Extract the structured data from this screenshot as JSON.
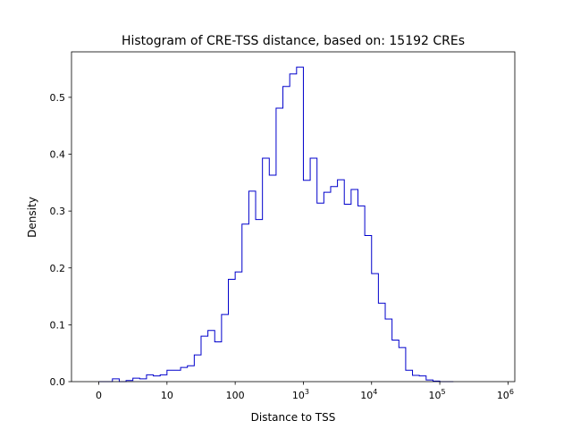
{
  "chart_data": {
    "type": "histogram-step",
    "title": "Histogram of CRE-TSS distance, based on: 15192 CREs",
    "xlabel": "Distance to TSS",
    "ylabel": "Density",
    "xscale": "symlog",
    "xlim_decades": [
      -0.4,
      6.1
    ],
    "ylim": [
      0,
      0.58
    ],
    "grid": false,
    "line_color": "#0000cc",
    "x_ticks": [
      {
        "label": "0",
        "decade": 0
      },
      {
        "label": "10",
        "decade": 1
      },
      {
        "label": "100",
        "decade": 2
      },
      {
        "label": "10",
        "sup": "3",
        "decade": 3
      },
      {
        "label": "10",
        "sup": "4",
        "decade": 4
      },
      {
        "label": "10",
        "sup": "5",
        "decade": 5
      },
      {
        "label": "10",
        "sup": "6",
        "decade": 6
      }
    ],
    "y_ticks": [
      0.0,
      0.1,
      0.2,
      0.3,
      0.4,
      0.5
    ],
    "y_tick_labels": [
      "0.0",
      "0.1",
      "0.2",
      "0.3",
      "0.4",
      "0.5"
    ],
    "bin_width_decades": 0.1,
    "bin_start_decade": 0,
    "densities": [
      0,
      0,
      0.005,
      0,
      0.002,
      0.006,
      0.005,
      0.012,
      0.01,
      0.012,
      0.02,
      0.02,
      0.025,
      0.028,
      0.047,
      0.08,
      0.09,
      0.07,
      0.118,
      0.18,
      0.193,
      0.277,
      0.335,
      0.285,
      0.393,
      0.363,
      0.481,
      0.519,
      0.541,
      0.553,
      0.354,
      0.393,
      0.314,
      0.333,
      0.343,
      0.355,
      0.312,
      0.338,
      0.309,
      0.257,
      0.19,
      0.138,
      0.11,
      0.073,
      0.06,
      0.02,
      0.011,
      0.01,
      0.003,
      0.001,
      0,
      0
    ]
  }
}
